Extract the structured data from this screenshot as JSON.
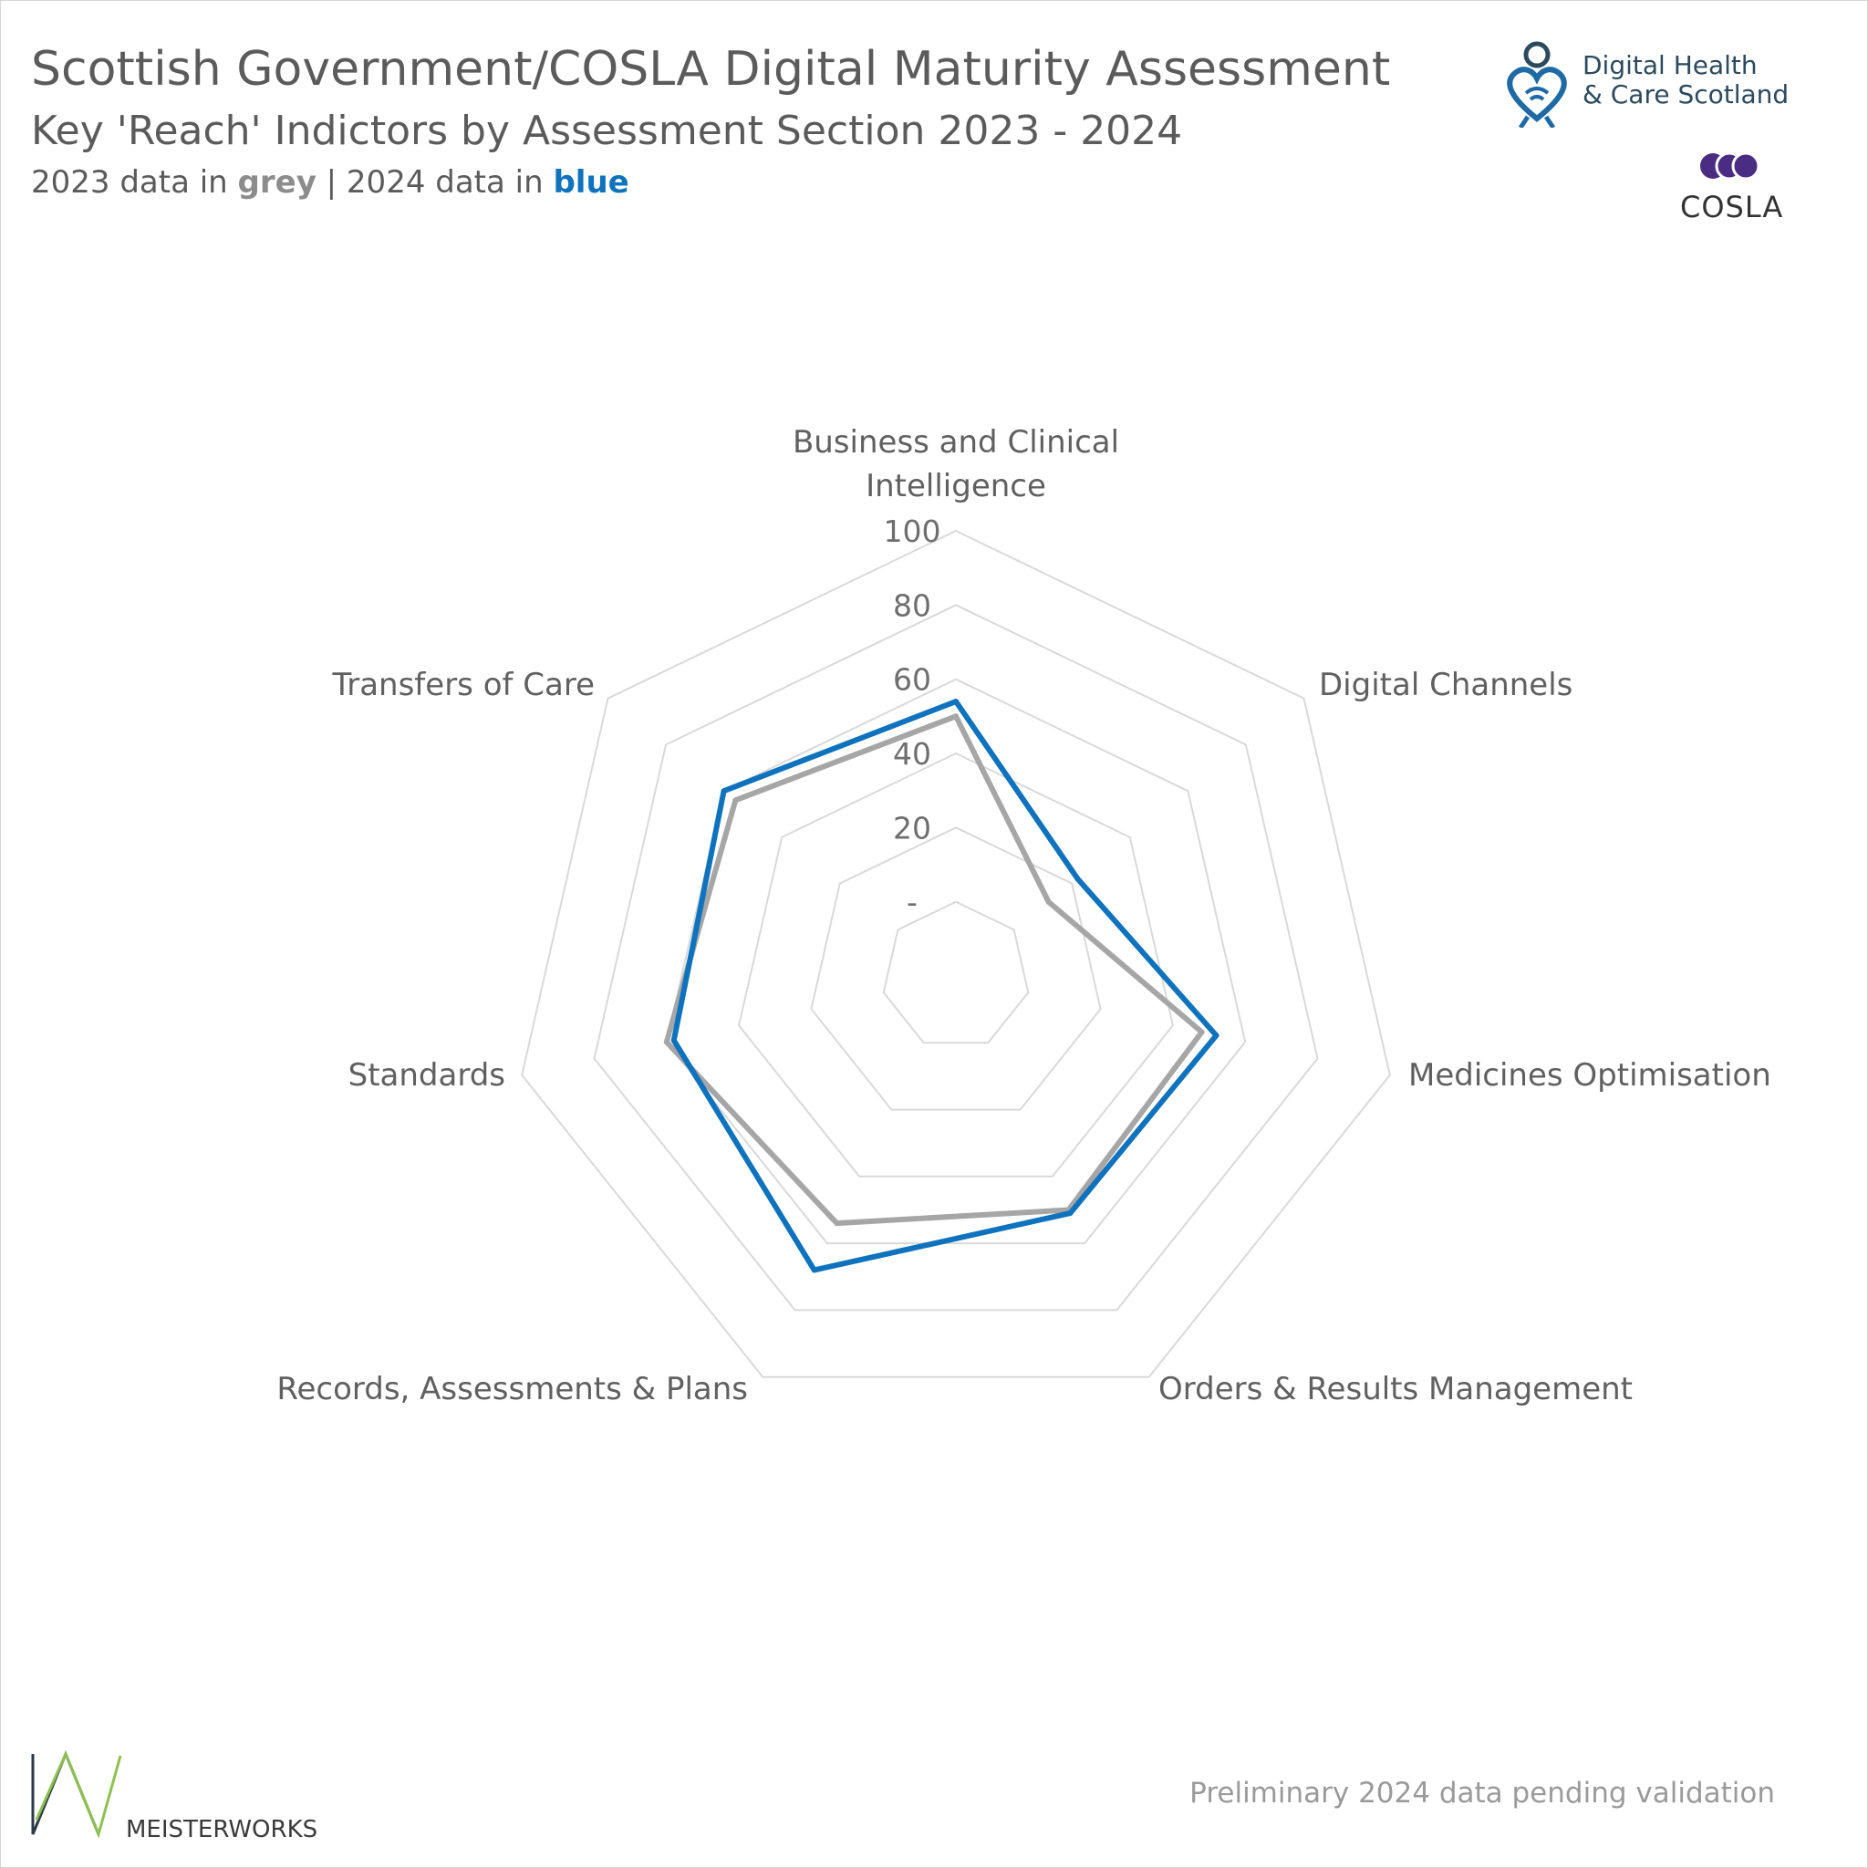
{
  "header": {
    "title": "Scottish Government/COSLA Digital Maturity Assessment",
    "subtitle": "Key 'Reach' Indictors by Assessment Section 2023 - 2024",
    "note_prefix_2023": "2023 data in ",
    "note_grey": "grey",
    "note_separator": " | 2024 data in ",
    "note_blue": "blue"
  },
  "logos": {
    "dhcs_line1": "Digital Health",
    "dhcs_line2": "& Care Scotland",
    "cosla": "COSLA",
    "meisterworks": "MEISTERWORKS"
  },
  "footer": {
    "note": "Preliminary 2024 data pending validation"
  },
  "colors": {
    "series_2023": "#a6a6a6",
    "series_2024": "#0f72bd",
    "grid": "#d9d9d9",
    "cosla_purple": "#4b2c83",
    "mw_green": "#8cc152",
    "mw_dark": "#2d3a45"
  },
  "chart_data": {
    "type": "radar",
    "categories": [
      "Business and Clinical Intelligence",
      "Digital Channels",
      "Medicines Optimisation",
      "Orders & Results Management",
      "Records, Assessments & Plans",
      "Standards",
      "Transfers of Care"
    ],
    "series": [
      {
        "key": "2023",
        "values": [
          50,
          12,
          48,
          50,
          54,
          60,
          56
        ]
      },
      {
        "key": "2024",
        "values": [
          54,
          22,
          52,
          51,
          68,
          58,
          60
        ]
      }
    ],
    "rlim": [
      0,
      100
    ],
    "ticks": [
      0,
      20,
      40,
      60,
      80,
      100
    ],
    "tick_labels": [
      "-",
      "20",
      "40",
      "60",
      "80",
      "100"
    ],
    "grid": true,
    "legend": "none"
  }
}
